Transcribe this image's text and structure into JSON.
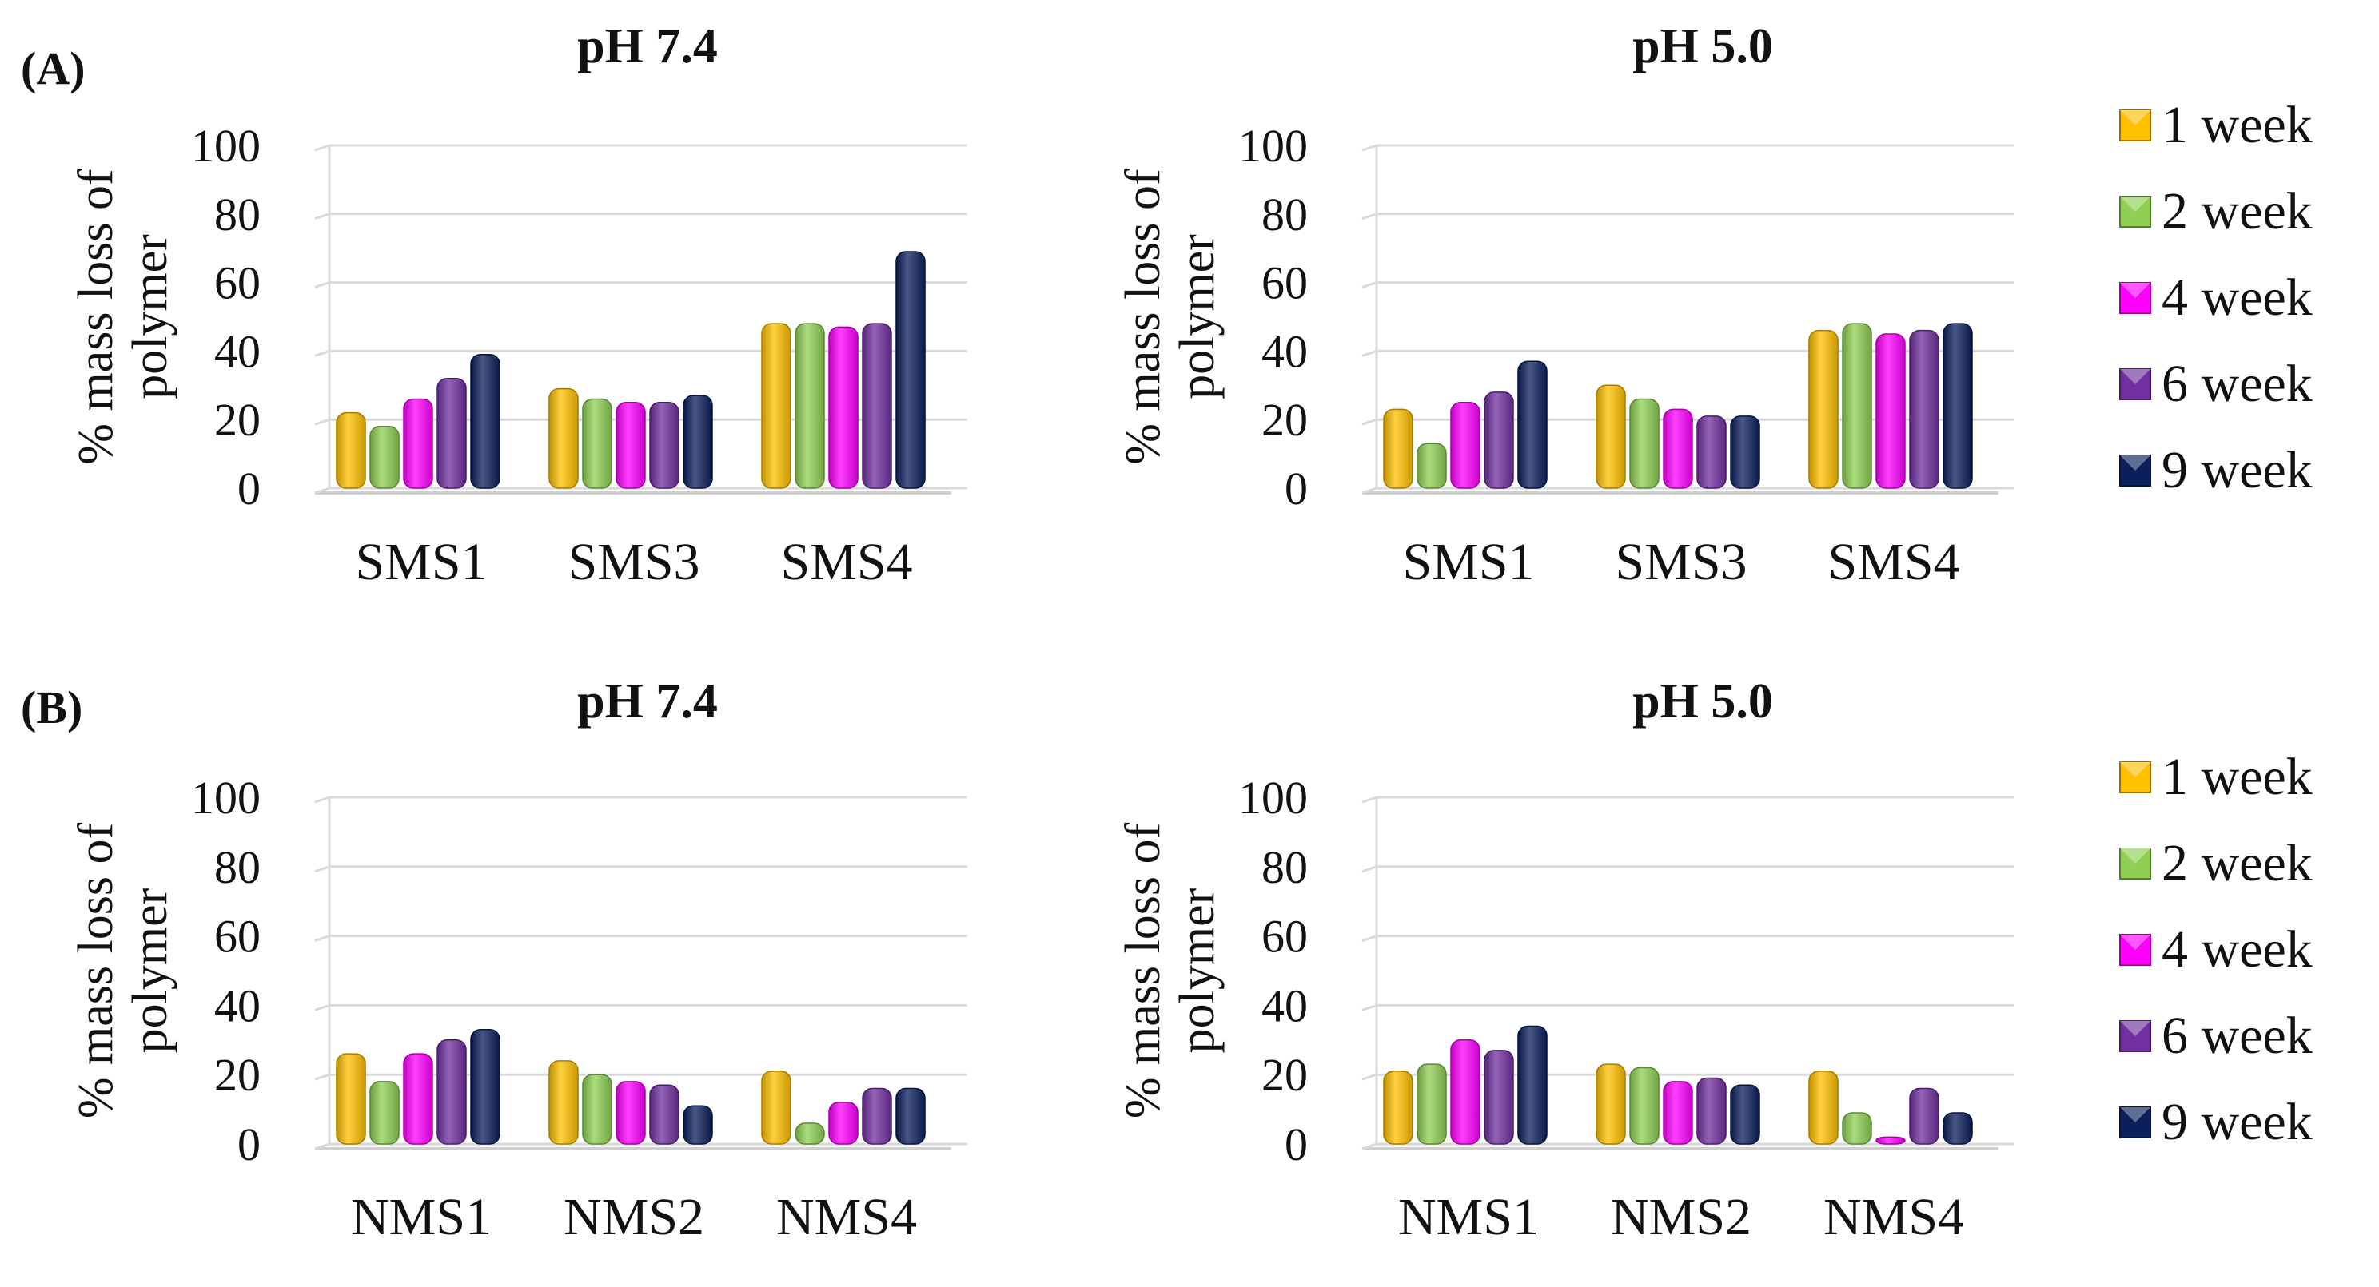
{
  "panels": {
    "A": "(A)",
    "B": "(B)"
  },
  "series_meta": [
    {
      "name": "1 week",
      "color": "#FFC000"
    },
    {
      "name": "2 week",
      "color": "#8FD053"
    },
    {
      "name": "4 week",
      "color": "#FF00FF"
    },
    {
      "name": "6 week",
      "color": "#7030A0"
    },
    {
      "name": "9 week",
      "color": "#0B1F5C"
    }
  ],
  "chart_data": [
    {
      "type": "bar",
      "title": "pH 7.4",
      "ylabel": "% mass loss of polymer",
      "ylim": [
        0,
        100
      ],
      "yticks": [
        "0",
        "20",
        "40",
        "60",
        "80",
        "100"
      ],
      "categories": [
        "SMS1",
        "SMS3",
        "SMS4"
      ],
      "series": [
        {
          "name": "1 week",
          "values": [
            22,
            29,
            48
          ]
        },
        {
          "name": "2 week",
          "values": [
            18,
            26,
            48
          ]
        },
        {
          "name": "4 week",
          "values": [
            26,
            25,
            47
          ]
        },
        {
          "name": "6 week",
          "values": [
            32,
            25,
            48
          ]
        },
        {
          "name": "9 week",
          "values": [
            39,
            27,
            69
          ]
        }
      ]
    },
    {
      "type": "bar",
      "title": "pH 5.0",
      "ylabel": "% mass loss of polymer",
      "ylim": [
        0,
        100
      ],
      "yticks": [
        "0",
        "20",
        "40",
        "60",
        "80",
        "100"
      ],
      "categories": [
        "SMS1",
        "SMS3",
        "SMS4"
      ],
      "legend": [
        "1 week",
        "2 week",
        "4 week",
        "6 week",
        "9 week"
      ],
      "series": [
        {
          "name": "1 week",
          "values": [
            23,
            30,
            46
          ]
        },
        {
          "name": "2 week",
          "values": [
            13,
            26,
            48
          ]
        },
        {
          "name": "4 week",
          "values": [
            25,
            23,
            45
          ]
        },
        {
          "name": "6 week",
          "values": [
            28,
            21,
            46
          ]
        },
        {
          "name": "9 week",
          "values": [
            37,
            21,
            48
          ]
        }
      ]
    },
    {
      "type": "bar",
      "title": "pH 7.4",
      "ylabel": "% mass loss of polymer",
      "ylim": [
        0,
        100
      ],
      "yticks": [
        "0",
        "20",
        "40",
        "60",
        "80",
        "100"
      ],
      "categories": [
        "NMS1",
        "NMS2",
        "NMS4"
      ],
      "series": [
        {
          "name": "1 week",
          "values": [
            26,
            24,
            21
          ]
        },
        {
          "name": "2 week",
          "values": [
            18,
            20,
            6
          ]
        },
        {
          "name": "4 week",
          "values": [
            26,
            18,
            12
          ]
        },
        {
          "name": "6 week",
          "values": [
            30,
            17,
            16
          ]
        },
        {
          "name": "9 week",
          "values": [
            33,
            11,
            16
          ]
        }
      ]
    },
    {
      "type": "bar",
      "title": "pH 5.0",
      "ylabel": "% mass loss of polymer",
      "ylim": [
        0,
        100
      ],
      "yticks": [
        "0",
        "20",
        "40",
        "60",
        "80",
        "100"
      ],
      "categories": [
        "NMS1",
        "NMS2",
        "NMS4"
      ],
      "legend": [
        "1 week",
        "2 week",
        "4 week",
        "6 week",
        "9 week"
      ],
      "series": [
        {
          "name": "1 week",
          "values": [
            21,
            23,
            21
          ]
        },
        {
          "name": "2 week",
          "values": [
            23,
            22,
            9
          ]
        },
        {
          "name": "4 week",
          "values": [
            30,
            18,
            2
          ]
        },
        {
          "name": "6 week",
          "values": [
            27,
            19,
            16
          ]
        },
        {
          "name": "9 week",
          "values": [
            34,
            17,
            9
          ]
        }
      ]
    }
  ]
}
